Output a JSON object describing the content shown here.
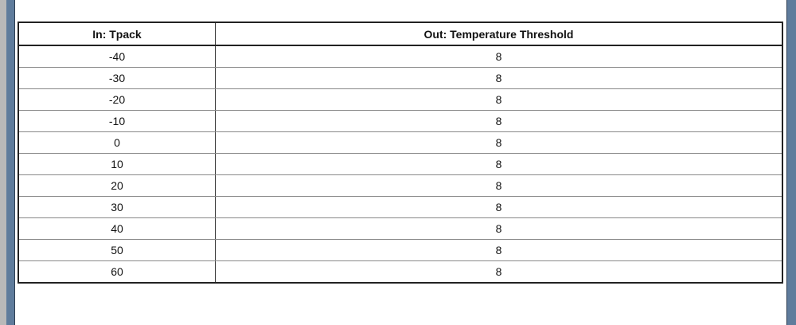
{
  "table": {
    "headers": [
      "In: Tpack",
      "Out: Temperature Threshold"
    ],
    "rows": [
      [
        "-40",
        "8"
      ],
      [
        "-30",
        "8"
      ],
      [
        "-20",
        "8"
      ],
      [
        "-10",
        "8"
      ],
      [
        "0",
        "8"
      ],
      [
        "10",
        "8"
      ],
      [
        "20",
        "8"
      ],
      [
        "30",
        "8"
      ],
      [
        "40",
        "8"
      ],
      [
        "50",
        "8"
      ],
      [
        "60",
        "8"
      ]
    ]
  }
}
